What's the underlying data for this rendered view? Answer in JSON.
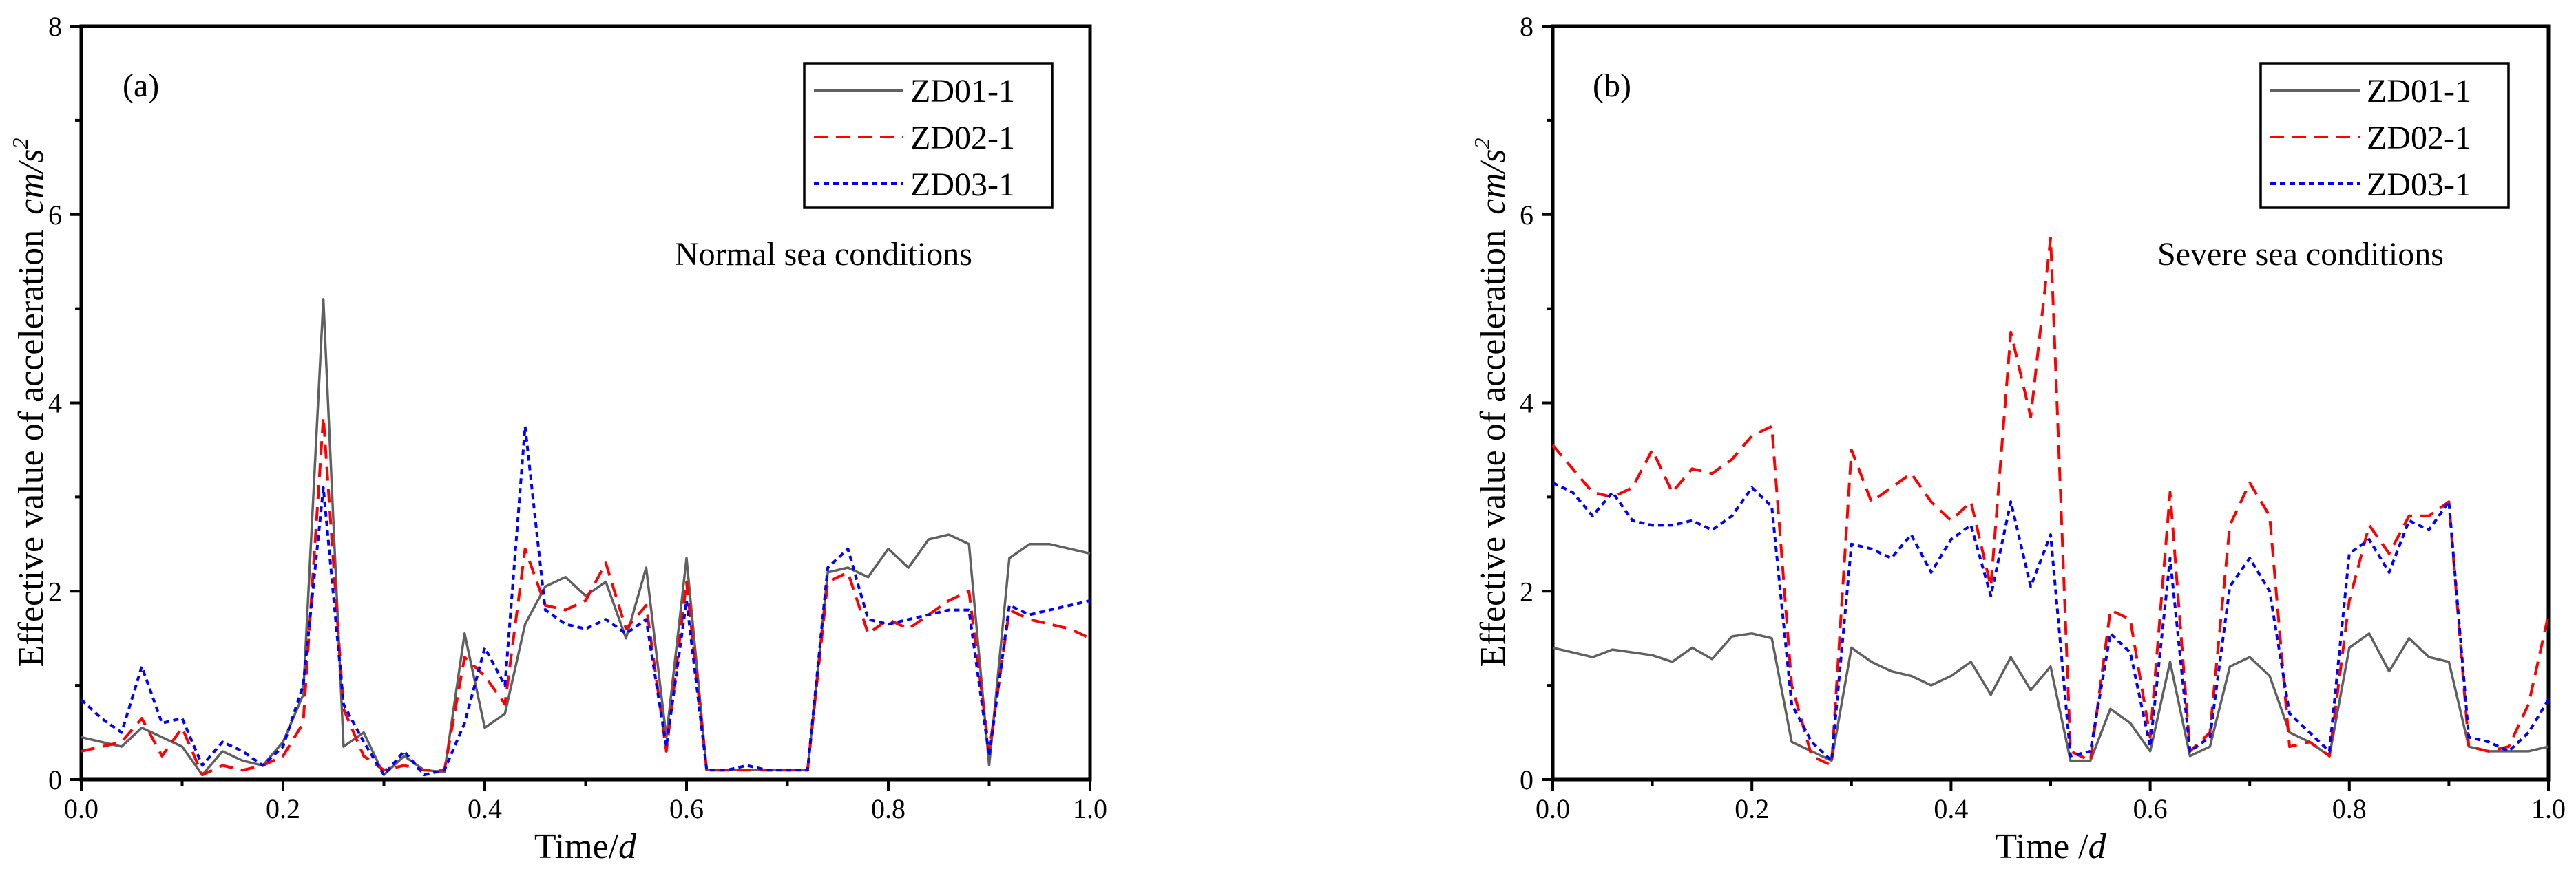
{
  "chart_data": [
    {
      "panel": "(a)",
      "type": "line",
      "annotation": "Normal sea conditions",
      "xlabel": "Time/",
      "xlabel_unit": "d",
      "ylabel": "Effective value of acceleration",
      "ylabel_unit": "cm/s",
      "ylabel_unit_sup": "2",
      "xlim": [
        0,
        1.0
      ],
      "ylim": [
        0,
        8
      ],
      "xticks": [
        "0.0",
        "0.2",
        "0.4",
        "0.6",
        "0.8",
        "1.0"
      ],
      "yticks": [
        "0",
        "2",
        "4",
        "6",
        "8"
      ],
      "legend": [
        "ZD01-1",
        "ZD02-1",
        "ZD03-1"
      ],
      "x": [
        0,
        0.02,
        0.04,
        0.06,
        0.08,
        0.1,
        0.12,
        0.14,
        0.16,
        0.18,
        0.2,
        0.22,
        0.24,
        0.26,
        0.28,
        0.3,
        0.32,
        0.34,
        0.36,
        0.38,
        0.4,
        0.42,
        0.44,
        0.46,
        0.48,
        0.5,
        0.52,
        0.54,
        0.56,
        0.58,
        0.6,
        0.62,
        0.64,
        0.66,
        0.68,
        0.7,
        0.72,
        0.74,
        0.76,
        0.78,
        0.8,
        0.82,
        0.84,
        0.86,
        0.88,
        0.9,
        0.92,
        0.94,
        0.96,
        0.98,
        1.0
      ],
      "series": [
        {
          "name": "ZD01-1",
          "color": "#606060",
          "dash": "solid",
          "values": [
            0.45,
            0.4,
            0.35,
            0.55,
            0.45,
            0.35,
            0.05,
            0.3,
            0.2,
            0.15,
            0.4,
            0.9,
            5.1,
            0.35,
            0.5,
            0.05,
            0.25,
            0.1,
            0.08,
            1.55,
            0.55,
            0.7,
            1.65,
            2.05,
            2.15,
            1.95,
            2.1,
            1.5,
            2.25,
            0.45,
            2.35,
            0.1,
            0.1,
            0.1,
            0.1,
            0.1,
            0.1,
            2.2,
            2.25,
            2.15,
            2.45,
            2.25,
            2.55,
            2.6,
            2.5,
            0.15,
            2.35,
            2.5,
            2.5,
            2.45,
            2.4
          ]
        },
        {
          "name": "ZD02-1",
          "color": "#ff0000",
          "dash": "long",
          "values": [
            0.3,
            0.35,
            0.4,
            0.65,
            0.25,
            0.55,
            0.05,
            0.15,
            0.1,
            0.15,
            0.25,
            0.6,
            3.85,
            0.75,
            0.25,
            0.1,
            0.15,
            0.1,
            0.1,
            1.3,
            1.1,
            0.8,
            2.45,
            1.85,
            1.8,
            1.9,
            2.3,
            1.6,
            1.85,
            0.3,
            2.1,
            0.1,
            0.1,
            0.1,
            0.1,
            0.1,
            0.1,
            2.1,
            2.2,
            1.55,
            1.7,
            1.6,
            1.75,
            1.9,
            2.0,
            0.3,
            1.8,
            1.7,
            1.65,
            1.6,
            1.5
          ]
        },
        {
          "name": "ZD03-1",
          "color": "#0000ff",
          "dash": "short",
          "values": [
            0.85,
            0.65,
            0.5,
            1.2,
            0.6,
            0.65,
            0.15,
            0.4,
            0.3,
            0.15,
            0.35,
            1.0,
            3.1,
            0.8,
            0.4,
            0.05,
            0.3,
            0.05,
            0.1,
            0.6,
            1.4,
            1.0,
            3.75,
            1.8,
            1.65,
            1.6,
            1.7,
            1.55,
            1.7,
            0.35,
            1.9,
            0.1,
            0.1,
            0.15,
            0.1,
            0.1,
            0.1,
            2.25,
            2.45,
            1.7,
            1.65,
            1.7,
            1.75,
            1.8,
            1.8,
            0.25,
            1.85,
            1.75,
            1.8,
            1.85,
            1.9
          ]
        }
      ]
    },
    {
      "panel": "(b)",
      "type": "line",
      "annotation": "Severe sea conditions",
      "xlabel": "Time /",
      "xlabel_unit": "d",
      "ylabel": "Effective value of acceleration",
      "ylabel_unit": "cm/s",
      "ylabel_unit_sup": "2",
      "xlim": [
        0,
        1.0
      ],
      "ylim": [
        0,
        8
      ],
      "xticks": [
        "0.0",
        "0.2",
        "0.4",
        "0.6",
        "0.8",
        "1.0"
      ],
      "yticks": [
        "0",
        "2",
        "4",
        "6",
        "8"
      ],
      "legend": [
        "ZD01-1",
        "ZD02-1",
        "ZD03-1"
      ],
      "x": [
        0,
        0.02,
        0.04,
        0.06,
        0.08,
        0.1,
        0.12,
        0.14,
        0.16,
        0.18,
        0.2,
        0.22,
        0.24,
        0.26,
        0.28,
        0.3,
        0.32,
        0.34,
        0.36,
        0.38,
        0.4,
        0.42,
        0.44,
        0.46,
        0.48,
        0.5,
        0.52,
        0.54,
        0.56,
        0.58,
        0.6,
        0.62,
        0.64,
        0.66,
        0.68,
        0.7,
        0.72,
        0.74,
        0.76,
        0.78,
        0.8,
        0.82,
        0.84,
        0.86,
        0.88,
        0.9,
        0.92,
        0.94,
        0.96,
        0.98,
        1.0
      ],
      "series": [
        {
          "name": "ZD01-1",
          "color": "#606060",
          "dash": "solid",
          "values": [
            1.4,
            1.35,
            1.3,
            1.38,
            1.35,
            1.32,
            1.25,
            1.4,
            1.28,
            1.52,
            1.55,
            1.5,
            0.4,
            0.3,
            0.2,
            1.4,
            1.25,
            1.15,
            1.1,
            1.0,
            1.1,
            1.25,
            0.9,
            1.3,
            0.95,
            1.2,
            0.2,
            0.2,
            0.75,
            0.6,
            0.3,
            1.25,
            0.25,
            0.35,
            1.2,
            1.3,
            1.1,
            0.5,
            0.4,
            0.25,
            1.4,
            1.55,
            1.15,
            1.5,
            1.3,
            1.25,
            0.35,
            0.3,
            0.3,
            0.3,
            0.35
          ]
        },
        {
          "name": "ZD02-1",
          "color": "#ff0000",
          "dash": "long",
          "values": [
            3.55,
            3.3,
            3.05,
            3.0,
            3.1,
            3.5,
            3.05,
            3.3,
            3.25,
            3.4,
            3.65,
            3.75,
            1.0,
            0.25,
            0.15,
            3.5,
            2.95,
            3.1,
            3.25,
            2.95,
            2.75,
            2.95,
            2.05,
            4.75,
            3.85,
            5.75,
            0.3,
            0.2,
            1.8,
            1.7,
            0.45,
            3.05,
            0.3,
            0.5,
            2.7,
            3.15,
            2.8,
            0.35,
            0.4,
            0.25,
            1.9,
            2.7,
            2.4,
            2.8,
            2.8,
            2.95,
            0.35,
            0.3,
            0.35,
            0.8,
            1.75
          ]
        },
        {
          "name": "ZD03-1",
          "color": "#0000ff",
          "dash": "short",
          "values": [
            3.15,
            3.05,
            2.8,
            3.05,
            2.75,
            2.7,
            2.7,
            2.75,
            2.65,
            2.8,
            3.1,
            2.9,
            0.8,
            0.4,
            0.2,
            2.5,
            2.45,
            2.35,
            2.6,
            2.2,
            2.55,
            2.7,
            1.95,
            2.95,
            2.05,
            2.6,
            0.25,
            0.3,
            1.55,
            1.35,
            0.35,
            2.35,
            0.3,
            0.45,
            2.05,
            2.35,
            2.0,
            0.7,
            0.5,
            0.3,
            2.4,
            2.55,
            2.2,
            2.75,
            2.65,
            2.95,
            0.45,
            0.4,
            0.3,
            0.5,
            0.85
          ]
        }
      ]
    }
  ]
}
